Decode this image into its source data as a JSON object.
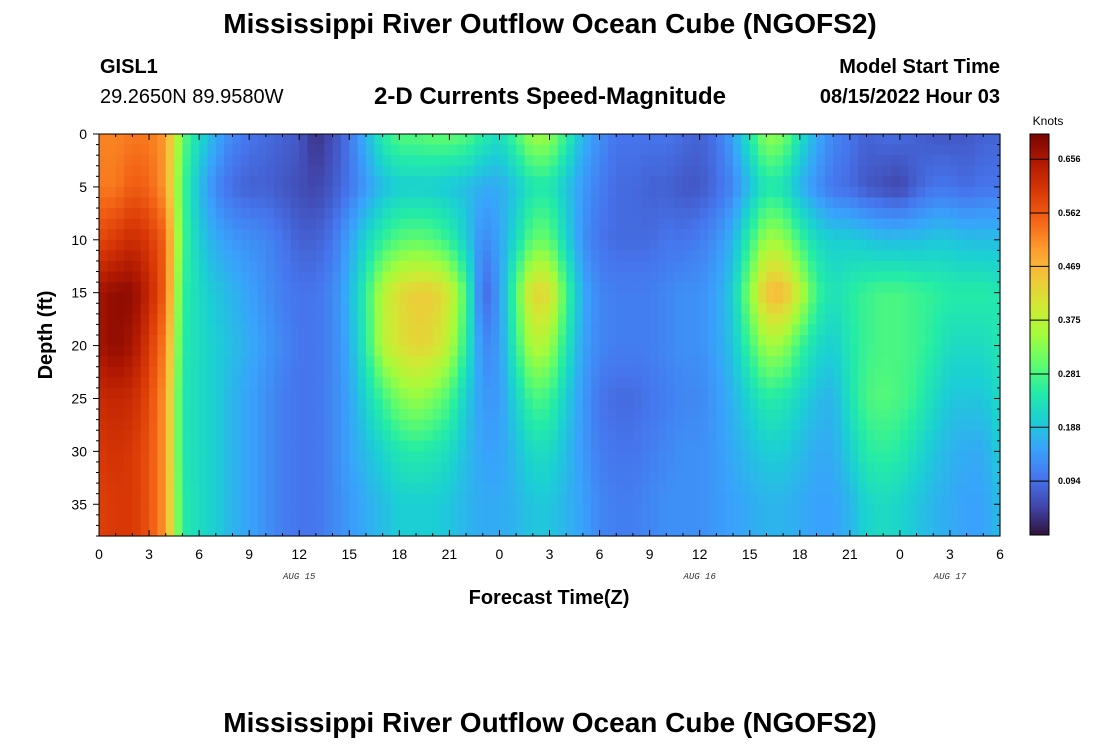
{
  "header": {
    "title": "Mississippi River Outflow Ocean Cube (NGOFS2)",
    "station": "GISL1",
    "coordinates": "29.2650N  89.9580W",
    "subtitle": "2-D Currents Speed-Magnitude",
    "model_start_label": "Model Start Time",
    "model_start_value": "08/15/2022 Hour 03"
  },
  "footer": {
    "title": "Mississippi River Outflow Ocean Cube (NGOFS2)"
  },
  "chart_data": {
    "type": "heatmap",
    "xlabel": "Forecast Time(Z)",
    "ylabel": "Depth (ft)",
    "colorbar_label": "Knots",
    "xlim": [
      0,
      54
    ],
    "ylim": [
      0,
      38
    ],
    "y_inverted": true,
    "x_ticks": [
      0,
      3,
      6,
      9,
      12,
      15,
      18,
      21,
      24,
      27,
      30,
      33,
      36,
      39,
      42,
      45,
      48,
      51,
      54
    ],
    "x_tick_labels": [
      "0",
      "3",
      "6",
      "9",
      "12",
      "15",
      "18",
      "21",
      "0",
      "3",
      "6",
      "9",
      "12",
      "15",
      "18",
      "21",
      "0",
      "3",
      "6"
    ],
    "date_labels": [
      {
        "x": 12,
        "text": "AUG 15"
      },
      {
        "x": 36,
        "text": "AUG 16"
      },
      {
        "x": 51,
        "text": "AUG 17"
      }
    ],
    "y_ticks": [
      0,
      5,
      10,
      15,
      20,
      25,
      30,
      35
    ],
    "y_tick_labels": [
      "0",
      "5",
      "10",
      "15",
      "20",
      "25",
      "30",
      "35"
    ],
    "colorbar_ticks": [
      0.094,
      0.188,
      0.281,
      0.375,
      0.469,
      0.562,
      0.656
    ],
    "colorbar_tick_labels": [
      "0.094",
      "0.188",
      "0.281",
      "0.375",
      "0.469",
      "0.562",
      "0.656"
    ],
    "color_range": [
      0.0,
      0.7
    ],
    "colormap": [
      "#30123b",
      "#4145ab",
      "#4675ed",
      "#39a2fc",
      "#1bcfd4",
      "#24eca6",
      "#61fc6c",
      "#a4fc3b",
      "#d1e834",
      "#f3c63a",
      "#fe9b2d",
      "#f36315",
      "#d93806",
      "#b11901",
      "#7a0403"
    ],
    "depth_levels": [
      0,
      5,
      10,
      15,
      20,
      25,
      30,
      35
    ],
    "time_columns": [
      0,
      1,
      2,
      3,
      4,
      5,
      6,
      7,
      8,
      9,
      10,
      11,
      12,
      13,
      14,
      15,
      16,
      17,
      18,
      19,
      20,
      21,
      22,
      23,
      24,
      25,
      26,
      27,
      28,
      29,
      30,
      31,
      32,
      33,
      34,
      35,
      36,
      37,
      38,
      39,
      40,
      41,
      42,
      43,
      44,
      45,
      46,
      47,
      48,
      49,
      50,
      51,
      52,
      53,
      54
    ],
    "speed_knots": [
      [
        0.52,
        0.52,
        0.53,
        0.53,
        0.5,
        0.3,
        0.22,
        0.16,
        0.12,
        0.1,
        0.09,
        0.08,
        0.07,
        0.03,
        0.06,
        0.1,
        0.17,
        0.25,
        0.29,
        0.29,
        0.3,
        0.3,
        0.29,
        0.25,
        0.22,
        0.28,
        0.35,
        0.34,
        0.26,
        0.17,
        0.13,
        0.1,
        0.1,
        0.1,
        0.1,
        0.09,
        0.08,
        0.1,
        0.15,
        0.24,
        0.34,
        0.32,
        0.23,
        0.16,
        0.12,
        0.1,
        0.08,
        0.09,
        0.09,
        0.08,
        0.07,
        0.07,
        0.07,
        0.08,
        0.08
      ],
      [
        0.53,
        0.53,
        0.56,
        0.55,
        0.5,
        0.28,
        0.18,
        0.12,
        0.09,
        0.08,
        0.08,
        0.07,
        0.06,
        0.05,
        0.07,
        0.1,
        0.14,
        0.18,
        0.2,
        0.2,
        0.2,
        0.19,
        0.18,
        0.16,
        0.16,
        0.19,
        0.24,
        0.24,
        0.19,
        0.14,
        0.11,
        0.09,
        0.09,
        0.08,
        0.08,
        0.07,
        0.07,
        0.09,
        0.12,
        0.18,
        0.24,
        0.23,
        0.17,
        0.13,
        0.1,
        0.09,
        0.07,
        0.06,
        0.05,
        0.08,
        0.1,
        0.1,
        0.09,
        0.1,
        0.1
      ],
      [
        0.58,
        0.6,
        0.62,
        0.6,
        0.55,
        0.28,
        0.2,
        0.16,
        0.14,
        0.13,
        0.12,
        0.1,
        0.08,
        0.08,
        0.1,
        0.15,
        0.21,
        0.26,
        0.29,
        0.3,
        0.29,
        0.26,
        0.2,
        0.12,
        0.15,
        0.22,
        0.3,
        0.3,
        0.21,
        0.13,
        0.1,
        0.09,
        0.09,
        0.09,
        0.1,
        0.1,
        0.11,
        0.13,
        0.17,
        0.26,
        0.35,
        0.34,
        0.27,
        0.22,
        0.2,
        0.2,
        0.19,
        0.18,
        0.18,
        0.18,
        0.19,
        0.19,
        0.18,
        0.18,
        0.18
      ],
      [
        0.66,
        0.68,
        0.68,
        0.63,
        0.55,
        0.26,
        0.22,
        0.19,
        0.17,
        0.15,
        0.13,
        0.11,
        0.1,
        0.1,
        0.12,
        0.17,
        0.26,
        0.37,
        0.42,
        0.44,
        0.44,
        0.4,
        0.28,
        0.08,
        0.14,
        0.29,
        0.43,
        0.42,
        0.28,
        0.16,
        0.12,
        0.11,
        0.11,
        0.11,
        0.12,
        0.13,
        0.13,
        0.15,
        0.2,
        0.33,
        0.46,
        0.47,
        0.38,
        0.27,
        0.23,
        0.25,
        0.27,
        0.28,
        0.28,
        0.27,
        0.26,
        0.25,
        0.25,
        0.25,
        0.24
      ],
      [
        0.66,
        0.68,
        0.66,
        0.6,
        0.52,
        0.25,
        0.22,
        0.2,
        0.18,
        0.16,
        0.14,
        0.12,
        0.1,
        0.1,
        0.12,
        0.16,
        0.25,
        0.37,
        0.41,
        0.43,
        0.42,
        0.37,
        0.25,
        0.12,
        0.14,
        0.26,
        0.37,
        0.35,
        0.24,
        0.15,
        0.12,
        0.11,
        0.11,
        0.11,
        0.12,
        0.13,
        0.13,
        0.15,
        0.19,
        0.27,
        0.35,
        0.34,
        0.27,
        0.22,
        0.2,
        0.24,
        0.27,
        0.28,
        0.28,
        0.27,
        0.25,
        0.22,
        0.22,
        0.22,
        0.24
      ],
      [
        0.62,
        0.63,
        0.62,
        0.58,
        0.5,
        0.24,
        0.22,
        0.2,
        0.17,
        0.15,
        0.13,
        0.11,
        0.1,
        0.1,
        0.12,
        0.15,
        0.21,
        0.27,
        0.32,
        0.34,
        0.32,
        0.28,
        0.2,
        0.14,
        0.14,
        0.21,
        0.28,
        0.27,
        0.2,
        0.14,
        0.1,
        0.09,
        0.09,
        0.1,
        0.11,
        0.12,
        0.12,
        0.14,
        0.17,
        0.21,
        0.25,
        0.24,
        0.21,
        0.18,
        0.17,
        0.23,
        0.28,
        0.29,
        0.28,
        0.26,
        0.22,
        0.19,
        0.19,
        0.19,
        0.22
      ],
      [
        0.6,
        0.61,
        0.6,
        0.57,
        0.5,
        0.24,
        0.22,
        0.2,
        0.17,
        0.15,
        0.13,
        0.11,
        0.1,
        0.1,
        0.12,
        0.15,
        0.18,
        0.21,
        0.24,
        0.25,
        0.24,
        0.22,
        0.18,
        0.15,
        0.15,
        0.18,
        0.22,
        0.22,
        0.18,
        0.14,
        0.11,
        0.1,
        0.1,
        0.11,
        0.12,
        0.13,
        0.13,
        0.14,
        0.16,
        0.18,
        0.2,
        0.2,
        0.18,
        0.16,
        0.16,
        0.2,
        0.25,
        0.26,
        0.25,
        0.22,
        0.19,
        0.17,
        0.16,
        0.16,
        0.2
      ],
      [
        0.59,
        0.6,
        0.6,
        0.57,
        0.5,
        0.25,
        0.22,
        0.2,
        0.17,
        0.15,
        0.13,
        0.11,
        0.1,
        0.1,
        0.12,
        0.14,
        0.16,
        0.18,
        0.2,
        0.2,
        0.2,
        0.19,
        0.17,
        0.16,
        0.16,
        0.17,
        0.19,
        0.19,
        0.17,
        0.15,
        0.12,
        0.11,
        0.11,
        0.12,
        0.13,
        0.13,
        0.13,
        0.14,
        0.15,
        0.16,
        0.17,
        0.17,
        0.16,
        0.15,
        0.15,
        0.17,
        0.21,
        0.22,
        0.21,
        0.19,
        0.17,
        0.16,
        0.15,
        0.15,
        0.18
      ]
    ]
  }
}
